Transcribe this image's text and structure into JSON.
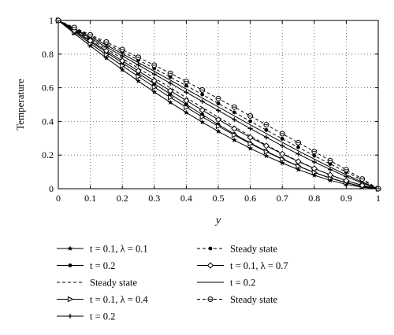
{
  "chart_data": {
    "type": "line",
    "title": "",
    "xlabel": "y",
    "ylabel": "Temperature",
    "xlim": [
      0,
      1
    ],
    "ylim": [
      0,
      1
    ],
    "xticks": [
      0,
      0.1,
      0.2,
      0.3,
      0.4,
      0.5,
      0.6,
      0.7,
      0.8,
      0.9,
      1
    ],
    "yticks": [
      0,
      0.2,
      0.4,
      0.6,
      0.8,
      1
    ],
    "xtick_labels": [
      "0",
      "0.1",
      "0.2",
      "0.3",
      "0.4",
      "0.5",
      "0.6",
      "0.7",
      "0.8",
      "0.9",
      "1"
    ],
    "ytick_labels": [
      "0",
      "0.2",
      "0.4",
      "0.6",
      "0.8",
      "1"
    ],
    "grid": true,
    "legend_position": "below",
    "x": [
      0,
      0.05,
      0.1,
      0.15,
      0.2,
      0.25,
      0.3,
      0.35,
      0.4,
      0.45,
      0.5,
      0.55,
      0.6,
      0.65,
      0.7,
      0.75,
      0.8,
      0.85,
      0.9,
      0.95,
      1
    ],
    "series": [
      {
        "name": "t = 0.1, λ = 0.1",
        "marker": "star",
        "dash": "solid",
        "values": [
          1,
          0.923,
          0.849,
          0.777,
          0.707,
          0.64,
          0.575,
          0.513,
          0.453,
          0.396,
          0.341,
          0.289,
          0.24,
          0.195,
          0.153,
          0.114,
          0.08,
          0.05,
          0.026,
          0.009,
          0
        ]
      },
      {
        "name": "t = 0.2",
        "marker": "dot",
        "dash": "solid",
        "values": [
          1,
          0.937,
          0.874,
          0.811,
          0.748,
          0.686,
          0.624,
          0.562,
          0.501,
          0.441,
          0.382,
          0.325,
          0.272,
          0.223,
          0.177,
          0.135,
          0.097,
          0.063,
          0.035,
          0.013,
          0
        ]
      },
      {
        "name": "Steady state",
        "marker": "none",
        "dash": "dash",
        "values": [
          1,
          0.944,
          0.888,
          0.831,
          0.774,
          0.716,
          0.658,
          0.6,
          0.541,
          0.483,
          0.425,
          0.368,
          0.313,
          0.26,
          0.21,
          0.164,
          0.121,
          0.082,
          0.048,
          0.02,
          0
        ]
      },
      {
        "name": "t = 0.1, λ = 0.4",
        "marker": "triangle",
        "dash": "solid",
        "values": [
          1,
          0.931,
          0.863,
          0.796,
          0.731,
          0.667,
          0.604,
          0.543,
          0.484,
          0.427,
          0.372,
          0.319,
          0.268,
          0.22,
          0.175,
          0.134,
          0.097,
          0.064,
          0.036,
          0.014,
          0
        ]
      },
      {
        "name": "t = 0.2",
        "marker": "plus",
        "dash": "solid",
        "values": [
          1,
          0.948,
          0.895,
          0.842,
          0.789,
          0.735,
          0.681,
          0.627,
          0.573,
          0.519,
          0.465,
          0.411,
          0.358,
          0.306,
          0.255,
          0.206,
          0.159,
          0.114,
          0.072,
          0.034,
          0
        ]
      },
      {
        "name": "Steady state",
        "marker": "dot",
        "dash": "dash",
        "values": [
          1,
          0.955,
          0.909,
          0.862,
          0.814,
          0.765,
          0.715,
          0.664,
          0.612,
          0.56,
          0.507,
          0.454,
          0.401,
          0.349,
          0.297,
          0.246,
          0.196,
          0.147,
          0.099,
          0.052,
          0
        ]
      },
      {
        "name": "t = 0.1, λ = 0.7",
        "marker": "diamond",
        "dash": "solid",
        "values": [
          1,
          0.94,
          0.88,
          0.82,
          0.76,
          0.7,
          0.641,
          0.582,
          0.524,
          0.467,
          0.411,
          0.357,
          0.305,
          0.255,
          0.207,
          0.162,
          0.12,
          0.082,
          0.048,
          0.02,
          0
        ]
      },
      {
        "name": "t = 0.2",
        "marker": "none",
        "dash": "solid",
        "values": [
          1,
          0.952,
          0.903,
          0.853,
          0.802,
          0.75,
          0.698,
          0.645,
          0.592,
          0.539,
          0.486,
          0.433,
          0.38,
          0.328,
          0.276,
          0.225,
          0.176,
          0.128,
          0.083,
          0.04,
          0
        ]
      },
      {
        "name": "Steady state",
        "marker": "circle-minus",
        "dash": "dash",
        "values": [
          1,
          0.958,
          0.915,
          0.872,
          0.827,
          0.781,
          0.734,
          0.686,
          0.637,
          0.587,
          0.536,
          0.485,
          0.433,
          0.38,
          0.327,
          0.274,
          0.221,
          0.167,
          0.113,
          0.058,
          0
        ]
      }
    ],
    "legend": [
      {
        "label": "t = 0.1, λ = 0.1",
        "series": 0,
        "col": 0,
        "row": 0
      },
      {
        "label": "t = 0.2",
        "series": 1,
        "col": 0,
        "row": 1
      },
      {
        "label": "Steady state",
        "series": 2,
        "col": 0,
        "row": 2
      },
      {
        "label": "t = 0.1, λ = 0.4",
        "series": 3,
        "col": 0,
        "row": 3
      },
      {
        "label": "t = 0.2",
        "series": 4,
        "col": 0,
        "row": 4
      },
      {
        "label": "Steady state",
        "series": 5,
        "col": 1,
        "row": 0
      },
      {
        "label": "t = 0.1, λ = 0.7",
        "series": 6,
        "col": 1,
        "row": 1
      },
      {
        "label": "t = 0.2",
        "series": 7,
        "col": 1,
        "row": 2
      },
      {
        "label": "Steady state",
        "series": 8,
        "col": 1,
        "row": 3
      }
    ]
  }
}
